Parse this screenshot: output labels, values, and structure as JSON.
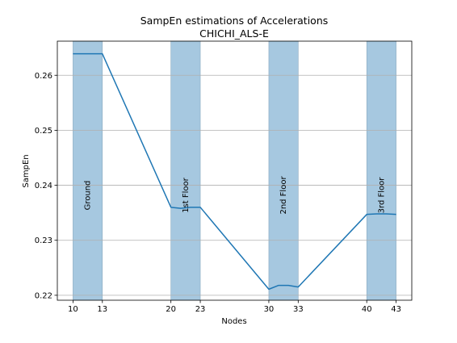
{
  "chart_data": {
    "type": "line",
    "title": "SampEn estimations of Accelerations",
    "subtitle": "CHICHI_ALS-E",
    "xlabel": "Nodes",
    "ylabel": "SampEn",
    "xlim": [
      8.4,
      44.6
    ],
    "ylim": [
      0.2191,
      0.2662
    ],
    "x_ticks": [
      10,
      13,
      20,
      23,
      30,
      33,
      40,
      43
    ],
    "y_ticks": [
      0.22,
      0.23,
      0.24,
      0.25,
      0.26
    ],
    "y_tick_labels": [
      "0.22",
      "0.23",
      "0.24",
      "0.25",
      "0.26"
    ],
    "grid": "horizontal",
    "line_color": "#1f77b4",
    "band_color": "#a6c8e0",
    "bands": [
      {
        "x0": 10,
        "x1": 13,
        "label": "Ground"
      },
      {
        "x0": 20,
        "x1": 23,
        "label": "1st Floor"
      },
      {
        "x0": 30,
        "x1": 33,
        "label": "2nd Floor"
      },
      {
        "x0": 40,
        "x1": 43,
        "label": "3rd Floor"
      }
    ],
    "series": [
      {
        "x": [
          10,
          11,
          12,
          13,
          20,
          21,
          22,
          23,
          30,
          31,
          32,
          33,
          40,
          41,
          42,
          43
        ],
        "y": [
          0.2639,
          0.2639,
          0.2639,
          0.2639,
          0.236,
          0.2358,
          0.236,
          0.236,
          0.2211,
          0.2218,
          0.2218,
          0.2215,
          0.2347,
          0.2348,
          0.2348,
          0.2347
        ]
      }
    ]
  }
}
